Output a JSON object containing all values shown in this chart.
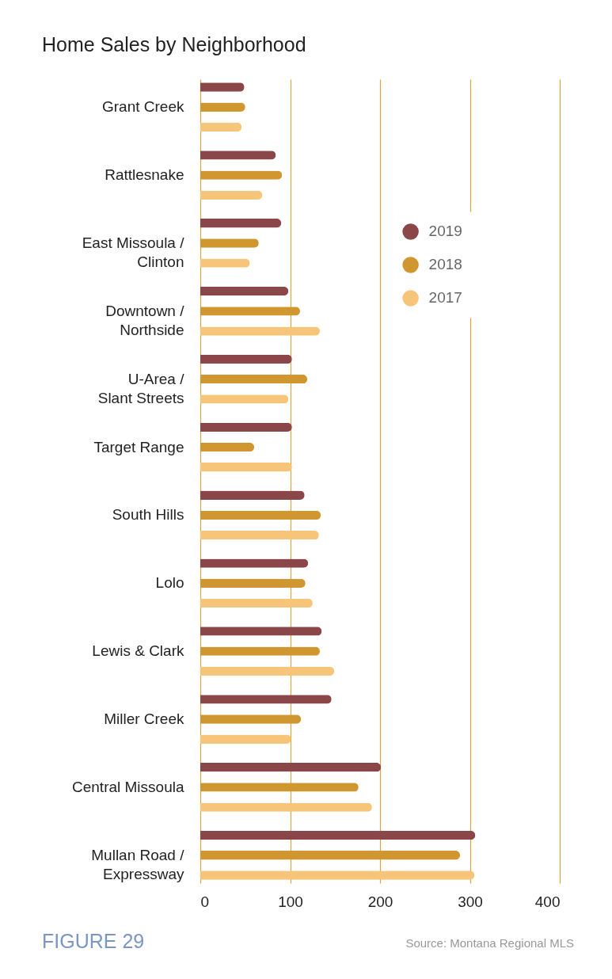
{
  "chart_data": {
    "type": "bar",
    "orientation": "horizontal",
    "title": "Home Sales by Neighborhood",
    "categories": [
      "Grant Creek",
      "Rattlesnake",
      "East Missoula / Clinton",
      "Downtown / Northside",
      "U-Area / Slant Streets",
      "Target Range",
      "South Hills",
      "Lolo",
      "Lewis & Clark",
      "Miller Creek",
      "Central Missoula",
      "Mullan Road / Expressway"
    ],
    "series": [
      {
        "name": "2019",
        "color": "#8b4649",
        "values": [
          49,
          84,
          90,
          98,
          102,
          102,
          116,
          120,
          135,
          146,
          201,
          306
        ]
      },
      {
        "name": "2018",
        "color": "#d0962f",
        "values": [
          50,
          91,
          65,
          111,
          119,
          60,
          134,
          117,
          133,
          112,
          176,
          289
        ]
      },
      {
        "name": "2017",
        "color": "#f7c57a",
        "values": [
          46,
          69,
          55,
          133,
          98,
          102,
          132,
          125,
          149,
          101,
          191,
          305
        ]
      }
    ],
    "xlim": [
      0,
      400
    ],
    "xticks": [
      0,
      100,
      200,
      300,
      400
    ],
    "grid": "x",
    "legend": "top right",
    "marker": "circle",
    "annotations": [
      "FIGURE 29",
      "Source: Montana Regional MLS"
    ]
  }
}
